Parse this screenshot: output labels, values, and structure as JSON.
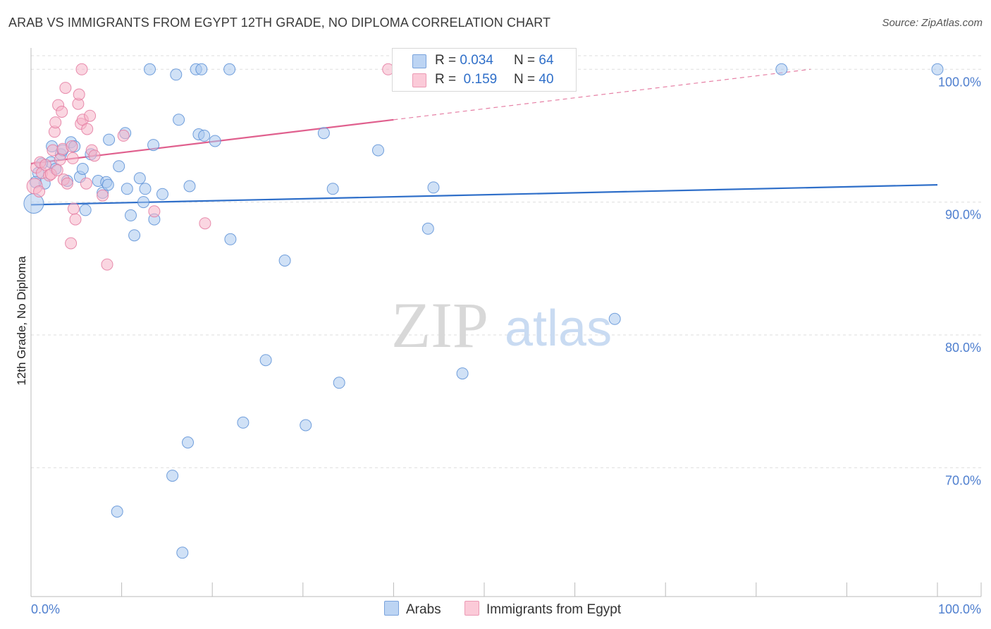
{
  "title": "ARAB VS IMMIGRANTS FROM EGYPT 12TH GRADE, NO DIPLOMA CORRELATION CHART",
  "source": "Source: ZipAtlas.com",
  "watermark": {
    "zip": "ZIP",
    "atlas": "atlas"
  },
  "legend_top": [
    {
      "r_label": "R =",
      "r_value": "0.034",
      "n_label": "N =",
      "n_value": "64",
      "color": "#aac8ee"
    },
    {
      "r_label": "R =",
      "r_value": "0.159",
      "n_label": "N =",
      "n_value": "40",
      "color": "#f6b5c8"
    }
  ],
  "legend_bottom": [
    {
      "label": "Arabs",
      "color": "#aac8ee"
    },
    {
      "label": "Immigrants from Egypt",
      "color": "#f6b5c8"
    }
  ],
  "chart_data": {
    "type": "scatter",
    "title": "ARAB VS IMMIGRANTS FROM EGYPT 12TH GRADE, NO DIPLOMA CORRELATION CHART",
    "xlabel": "",
    "ylabel": "12th Grade, No Diploma",
    "xlim": [
      0,
      100
    ],
    "ylim": [
      60.3,
      101.5
    ],
    "x_tick_labels": [
      "0.0%",
      "100.0%"
    ],
    "y_ticks": [
      70,
      80,
      90,
      100
    ],
    "y_tick_labels": [
      "70.0%",
      "80.0%",
      "90.0%",
      "100.0%"
    ],
    "grid": true,
    "series": [
      {
        "name": "Arabs",
        "color": "#5b8fd6",
        "fill": "#aac8ee",
        "trend": {
          "x": [
            0,
            100
          ],
          "y": [
            89.8,
            91.3
          ],
          "color": "#2f6fc9"
        },
        "points": [
          [
            0.3,
            89.9
          ],
          [
            0.8,
            92.2
          ],
          [
            1.5,
            91.4
          ],
          [
            2.2,
            93.0
          ],
          [
            2.3,
            94.2
          ],
          [
            2.7,
            92.5
          ],
          [
            3.3,
            93.6
          ],
          [
            3.5,
            93.9
          ],
          [
            4.0,
            91.6
          ],
          [
            4.4,
            94.5
          ],
          [
            4.8,
            94.2
          ],
          [
            5.4,
            91.9
          ],
          [
            5.7,
            92.5
          ],
          [
            6.0,
            89.4
          ],
          [
            6.6,
            93.6
          ],
          [
            7.4,
            91.6
          ],
          [
            7.9,
            90.7
          ],
          [
            8.3,
            91.5
          ],
          [
            8.6,
            94.7
          ],
          [
            8.5,
            91.3
          ],
          [
            9.5,
            66.7
          ],
          [
            9.7,
            92.7
          ],
          [
            10.4,
            95.2
          ],
          [
            10.6,
            91.0
          ],
          [
            11.0,
            89.0
          ],
          [
            11.4,
            87.5
          ],
          [
            12.0,
            91.8
          ],
          [
            12.4,
            90.0
          ],
          [
            12.6,
            91.0
          ],
          [
            13.1,
            100.0
          ],
          [
            13.5,
            94.3
          ],
          [
            13.6,
            88.7
          ],
          [
            14.5,
            90.6
          ],
          [
            15.6,
            69.4
          ],
          [
            16.0,
            99.6
          ],
          [
            16.3,
            96.2
          ],
          [
            16.7,
            63.6
          ],
          [
            17.3,
            71.9
          ],
          [
            17.5,
            91.2
          ],
          [
            18.2,
            100.0
          ],
          [
            18.5,
            95.1
          ],
          [
            18.8,
            100.0
          ],
          [
            19.1,
            95.0
          ],
          [
            20.3,
            94.6
          ],
          [
            21.9,
            100.0
          ],
          [
            22.0,
            87.2
          ],
          [
            23.4,
            73.4
          ],
          [
            25.9,
            78.1
          ],
          [
            28.0,
            85.6
          ],
          [
            30.3,
            73.2
          ],
          [
            32.3,
            95.2
          ],
          [
            33.3,
            91.0
          ],
          [
            34.0,
            76.4
          ],
          [
            38.3,
            93.9
          ],
          [
            43.8,
            88.0
          ],
          [
            44.4,
            91.1
          ],
          [
            46.5,
            100.0
          ],
          [
            47.6,
            77.1
          ],
          [
            57.5,
            100.0
          ],
          [
            64.4,
            81.2
          ],
          [
            82.8,
            100.0
          ],
          [
            100.0,
            100.0
          ],
          [
            0.5,
            91.5
          ],
          [
            1.2,
            92.9
          ]
        ]
      },
      {
        "name": "Immigrants from Egypt",
        "color": "#e47aa0",
        "fill": "#f6b5c8",
        "trend": {
          "x": [
            0,
            40
          ],
          "y": [
            92.9,
            96.2
          ],
          "color": "#e0608e",
          "dashed_x": [
            40,
            86
          ],
          "dashed_y": [
            96.2,
            100.0
          ]
        },
        "points": [
          [
            0.4,
            91.2
          ],
          [
            0.6,
            92.6
          ],
          [
            1.0,
            93.0
          ],
          [
            1.2,
            92.2
          ],
          [
            1.6,
            92.8
          ],
          [
            2.0,
            92.0
          ],
          [
            2.2,
            92.1
          ],
          [
            2.4,
            93.9
          ],
          [
            2.6,
            95.3
          ],
          [
            2.7,
            96.0
          ],
          [
            3.0,
            97.3
          ],
          [
            3.2,
            93.2
          ],
          [
            3.4,
            96.8
          ],
          [
            3.5,
            94.0
          ],
          [
            3.6,
            91.7
          ],
          [
            3.8,
            98.6
          ],
          [
            4.0,
            91.4
          ],
          [
            4.4,
            86.9
          ],
          [
            4.5,
            94.2
          ],
          [
            4.6,
            93.3
          ],
          [
            4.7,
            89.5
          ],
          [
            4.9,
            88.7
          ],
          [
            5.2,
            97.4
          ],
          [
            5.3,
            98.1
          ],
          [
            5.5,
            95.9
          ],
          [
            5.6,
            100.0
          ],
          [
            5.7,
            96.2
          ],
          [
            6.1,
            91.4
          ],
          [
            6.2,
            95.5
          ],
          [
            6.5,
            96.5
          ],
          [
            6.7,
            93.9
          ],
          [
            7.0,
            93.5
          ],
          [
            7.9,
            90.5
          ],
          [
            8.4,
            85.3
          ],
          [
            10.2,
            95.0
          ],
          [
            13.6,
            89.3
          ],
          [
            19.2,
            88.4
          ],
          [
            39.4,
            100.0
          ],
          [
            0.9,
            90.8
          ],
          [
            2.9,
            92.4
          ]
        ]
      }
    ]
  }
}
